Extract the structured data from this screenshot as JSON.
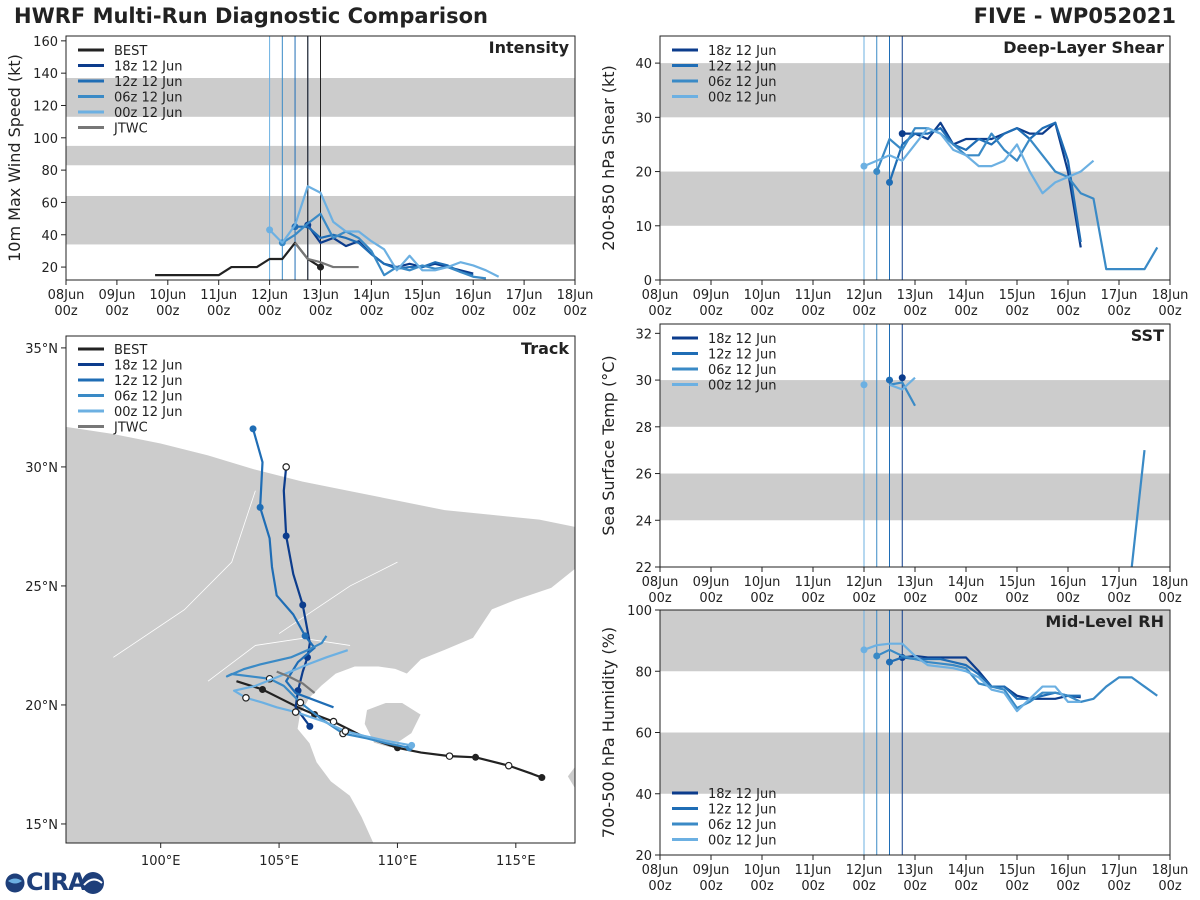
{
  "header": {
    "title_left": "HWRF Multi-Run Diagnostic Comparison",
    "title_right": "FIVE - WP052021"
  },
  "logo": {
    "text": "CIRA",
    "icon": "cira-logo-icon"
  },
  "colors": {
    "best": "#222222",
    "jtwc": "#777777",
    "run_18z": "#0c3c8c",
    "run_12z": "#1f6db5",
    "run_06z": "#3a8ac6",
    "run_00z": "#6cb0e2",
    "band": "#cccccc",
    "land": "#cccccc"
  },
  "time_axis": {
    "tick_labels": [
      [
        "08Jun",
        "00z"
      ],
      [
        "09Jun",
        "00z"
      ],
      [
        "10Jun",
        "00z"
      ],
      [
        "11Jun",
        "00z"
      ],
      [
        "12Jun",
        "00z"
      ],
      [
        "13Jun",
        "00z"
      ],
      [
        "14Jun",
        "00z"
      ],
      [
        "15Jun",
        "00z"
      ],
      [
        "16Jun",
        "00z"
      ],
      [
        "17Jun",
        "00z"
      ],
      [
        "18Jun",
        "00z"
      ]
    ],
    "run_times_hours": [
      96,
      102,
      108,
      114
    ],
    "best_last_hour": 120
  },
  "chart_data": [
    {
      "id": "intensity",
      "type": "line",
      "title": "Intensity",
      "ylabel": "10m Max Wind Speed (kt)",
      "xlabel": "",
      "x_units": "hours since 08Jun 00z",
      "ylim": [
        12,
        163
      ],
      "yticks": [
        20,
        40,
        60,
        80,
        100,
        120,
        140,
        160
      ],
      "bands": [
        [
          34,
          64
        ],
        [
          83,
          95
        ],
        [
          113,
          137
        ]
      ],
      "legend": [
        "BEST",
        "18z 12 Jun",
        "12z 12 Jun",
        "06z 12 Jun",
        "00z 12 Jun",
        "JTWC"
      ],
      "series": [
        {
          "name": "BEST",
          "x": [
            42,
            48,
            54,
            60,
            66,
            72,
            78,
            84,
            90,
            96,
            102,
            108,
            114,
            120
          ],
          "values": [
            15,
            15,
            15,
            15,
            15,
            15,
            20,
            20,
            20,
            25,
            25,
            35,
            25,
            20
          ],
          "end_marker": true
        },
        {
          "name": "18z 12 Jun",
          "x": [
            114,
            120,
            126,
            132,
            138,
            144,
            150,
            156,
            162,
            168,
            174,
            180,
            186,
            192
          ],
          "values": [
            46,
            35,
            38,
            33,
            36,
            28,
            22,
            20,
            22,
            20,
            22,
            20,
            18,
            16
          ],
          "start_marker": true
        },
        {
          "name": "12z 12 Jun",
          "x": [
            108,
            114,
            120,
            126,
            132,
            138,
            144,
            150,
            156,
            162,
            168,
            174,
            180,
            186,
            192
          ],
          "values": [
            45,
            45,
            38,
            40,
            38,
            35,
            28,
            22,
            19,
            20,
            20,
            23,
            21,
            17,
            15
          ],
          "start_marker": true
        },
        {
          "name": "06z 12 Jun",
          "x": [
            102,
            108,
            114,
            120,
            126,
            132,
            138,
            144,
            150,
            156,
            162,
            168,
            174,
            180,
            186,
            192,
            198
          ],
          "values": [
            35,
            40,
            47,
            53,
            38,
            42,
            38,
            30,
            15,
            20,
            18,
            21,
            19,
            20,
            17,
            14,
            13
          ],
          "start_marker": true
        },
        {
          "name": "00z 12 Jun",
          "x": [
            96,
            102,
            108,
            114,
            120,
            126,
            132,
            138,
            144,
            150,
            156,
            162,
            168,
            174,
            180,
            186,
            192,
            198,
            204
          ],
          "values": [
            43,
            35,
            46,
            70,
            66,
            48,
            42,
            42,
            36,
            31,
            18,
            27,
            18,
            18,
            20,
            23,
            21,
            18,
            14
          ],
          "start_marker": true
        },
        {
          "name": "JTWC",
          "x": [
            108,
            114,
            120,
            126,
            132,
            138
          ],
          "values": [
            35,
            25,
            23,
            20,
            20,
            20
          ]
        }
      ]
    },
    {
      "id": "shear",
      "type": "line",
      "title": "Deep-Layer Shear",
      "ylabel": "200-850 hPa Shear (kt)",
      "xlabel": "",
      "x_units": "hours since 08Jun 00z",
      "ylim": [
        0,
        45
      ],
      "yticks": [
        0,
        10,
        20,
        30,
        40
      ],
      "bands": [
        [
          10,
          20
        ],
        [
          30,
          40
        ]
      ],
      "legend": [
        "18z 12 Jun",
        "12z 12 Jun",
        "06z 12 Jun",
        "00z 12 Jun"
      ],
      "series": [
        {
          "name": "18z 12 Jun",
          "x": [
            114,
            120,
            126,
            132,
            138,
            144,
            150,
            156,
            162,
            168,
            174,
            180,
            186,
            192,
            198
          ],
          "values": [
            27,
            27,
            26,
            29,
            25,
            26,
            26,
            26,
            27,
            28,
            27,
            27,
            29,
            20,
            6
          ],
          "start_marker": true
        },
        {
          "name": "12z 12 Jun",
          "x": [
            108,
            114,
            120,
            126,
            132,
            138,
            144,
            150,
            156,
            162,
            168,
            174,
            180,
            186,
            192,
            198
          ],
          "values": [
            18,
            25,
            27,
            27,
            28,
            25,
            24,
            26,
            25,
            27,
            28,
            26,
            28,
            29,
            22,
            7
          ],
          "start_marker": true
        },
        {
          "name": "06z 12 Jun",
          "x": [
            102,
            108,
            114,
            120,
            126,
            132,
            138,
            144,
            150,
            156,
            162,
            168,
            174,
            180,
            186,
            192,
            198,
            204,
            210,
            216,
            222,
            228,
            234
          ],
          "values": [
            20,
            26,
            24,
            28,
            28,
            27,
            25,
            23,
            23,
            27,
            24,
            22,
            26,
            23,
            20,
            19,
            16,
            15,
            2,
            2,
            2,
            2,
            6
          ],
          "start_marker": true
        },
        {
          "name": "00z 12 Jun",
          "x": [
            96,
            102,
            108,
            114,
            120,
            126,
            132,
            138,
            144,
            150,
            156,
            162,
            168,
            174,
            180,
            186,
            192,
            198,
            204
          ],
          "values": [
            21,
            22,
            23,
            22,
            25,
            28,
            27,
            24,
            23,
            21,
            21,
            22,
            25,
            20,
            16,
            18,
            19,
            20,
            22
          ],
          "start_marker": true
        }
      ]
    },
    {
      "id": "sst",
      "type": "line",
      "title": "SST",
      "ylabel": "Sea Surface Temp (°C)",
      "xlabel": "",
      "x_units": "hours since 08Jun 00z",
      "ylim": [
        22,
        32.4
      ],
      "yticks": [
        22,
        24,
        26,
        28,
        30,
        32
      ],
      "bands": [
        [
          24,
          26
        ],
        [
          28,
          30
        ]
      ],
      "legend": [
        "18z 12 Jun",
        "12z 12 Jun",
        "06z 12 Jun",
        "00z 12 Jun"
      ],
      "series": [
        {
          "name": "18z 12 Jun",
          "x": [
            114
          ],
          "values": [
            30.1
          ],
          "start_marker": true
        },
        {
          "name": "12z 12 Jun",
          "x": [
            108
          ],
          "values": [
            30.0
          ],
          "start_marker": true
        },
        {
          "name": "06z 12 Jun",
          "x": [
            108,
            114,
            120,
            222,
            228
          ],
          "values": [
            29.8,
            29.9,
            28.9,
            22.0,
            27.0
          ],
          "start_marker": false,
          "break_after": 2
        },
        {
          "name": "00z 12 Jun",
          "x": [
            96,
            108,
            114,
            120
          ],
          "values": [
            29.8,
            29.8,
            29.6,
            30.1
          ],
          "start_marker": true,
          "break_after": 0
        }
      ]
    },
    {
      "id": "rh",
      "type": "line",
      "title": "Mid-Level RH",
      "ylabel": "700-500 hPa Humidity (%)",
      "xlabel": "",
      "x_units": "hours since 08Jun 00z",
      "ylim": [
        20,
        100
      ],
      "yticks": [
        20,
        40,
        60,
        80,
        100
      ],
      "bands": [
        [
          40,
          60
        ],
        [
          80,
          100
        ]
      ],
      "legend": [
        "18z 12 Jun",
        "12z 12 Jun",
        "06z 12 Jun",
        "00z 12 Jun"
      ],
      "series": [
        {
          "name": "18z 12 Jun",
          "x": [
            114,
            120,
            126,
            132,
            138,
            144,
            150,
            156,
            162,
            168,
            174,
            180,
            186,
            192,
            198
          ],
          "values": [
            84.5,
            85,
            84.5,
            84.5,
            84.5,
            84.5,
            80,
            75,
            75,
            72,
            71,
            71,
            71,
            72,
            71.5
          ],
          "start_marker": true
        },
        {
          "name": "12z 12 Jun",
          "x": [
            108,
            114,
            120,
            126,
            132,
            138,
            144,
            150,
            156,
            162,
            168,
            174,
            180,
            186,
            192,
            198
          ],
          "values": [
            83,
            84.5,
            84,
            84,
            84,
            83,
            82,
            79,
            75,
            75,
            71,
            71,
            72,
            73,
            72,
            72
          ],
          "start_marker": true
        },
        {
          "name": "06z 12 Jun",
          "x": [
            102,
            108,
            114,
            120,
            126,
            132,
            138,
            144,
            150,
            156,
            162,
            168,
            174,
            180,
            186,
            192,
            198,
            204,
            210,
            216,
            222,
            228,
            234
          ],
          "values": [
            85,
            87,
            85,
            84,
            83,
            82.5,
            82,
            81,
            76,
            75,
            74,
            68,
            70,
            73,
            73,
            72,
            70,
            71,
            75,
            78,
            78,
            75,
            72
          ],
          "start_marker": true
        },
        {
          "name": "00z 12 Jun",
          "x": [
            96,
            102,
            108,
            114,
            120,
            126,
            132,
            138,
            144,
            150,
            156,
            162,
            168,
            174,
            180,
            186,
            192,
            198
          ],
          "values": [
            87,
            88.5,
            89,
            89,
            85,
            82,
            81.5,
            81,
            80,
            78,
            74,
            73,
            67,
            71,
            75,
            75,
            70,
            70
          ],
          "start_marker": true
        }
      ]
    },
    {
      "id": "track",
      "type": "scatter",
      "title": "Track",
      "xlabel": "",
      "ylabel": "",
      "xlim": [
        96,
        117.5
      ],
      "ylim": [
        14.2,
        35.5
      ],
      "x_ticks": [
        100,
        105,
        110,
        115
      ],
      "x_tick_labels": [
        "100°E",
        "105°E",
        "110°E",
        "115°E"
      ],
      "y_ticks": [
        15,
        20,
        25,
        30,
        35
      ],
      "y_tick_labels": [
        "15°N",
        "20°N",
        "25°N",
        "30°N",
        "35°N"
      ],
      "legend": [
        "BEST",
        "18z 12 Jun",
        "12z 12 Jun",
        "06z 12 Jun",
        "00z 12 Jun",
        "JTWC"
      ],
      "series": [
        {
          "name": "BEST",
          "lon": [
            116.1,
            115.7,
            114.7,
            113.3,
            112.2,
            111.0,
            110.0,
            108.5,
            107.3,
            106.5,
            105.8,
            105.0,
            104.3,
            103.2
          ],
          "lat": [
            16.95,
            17.1,
            17.45,
            17.8,
            17.85,
            18.0,
            18.2,
            18.7,
            19.3,
            19.6,
            19.9,
            20.3,
            20.65,
            21.0
          ],
          "filled_every": [
            0,
            3,
            6,
            9,
            12
          ],
          "open_every": [
            2,
            4,
            8
          ]
        },
        {
          "name": "18z 12 Jun",
          "lon": [
            106.3,
            106.0,
            105.7,
            105.8,
            106.0,
            106.2,
            106.3,
            106.0,
            105.6,
            105.3,
            105.2,
            105.3
          ],
          "lat": [
            19.1,
            19.5,
            19.9,
            20.6,
            21.4,
            22.0,
            22.6,
            24.2,
            25.5,
            27.1,
            29.0,
            30.0
          ],
          "filled_every": [
            0,
            3,
            5,
            7,
            9
          ],
          "open_every": [
            11
          ]
        },
        {
          "name": "12z 12 Jun",
          "lon": [
            107.3,
            106.5,
            105.7,
            105.3,
            105.8,
            106.5,
            106.1,
            105.6,
            104.9,
            104.7,
            104.6,
            104.2,
            104.3,
            103.9
          ],
          "lat": [
            19.9,
            20.2,
            20.5,
            21.0,
            21.8,
            22.4,
            22.9,
            23.8,
            24.6,
            25.8,
            27.0,
            28.3,
            30.2,
            31.6
          ],
          "filled_every": [
            6,
            11,
            13
          ],
          "open_every": []
        },
        {
          "name": "06z 12 Jun",
          "lon": [
            110.5,
            109.5,
            108.7,
            107.7,
            106.8,
            105.9,
            105.2,
            104.6,
            103.0,
            102.8,
            103.5,
            104.2,
            105.5,
            106.2,
            106.8,
            107.0
          ],
          "lat": [
            18.2,
            18.4,
            18.6,
            18.8,
            19.4,
            20.1,
            20.8,
            21.1,
            21.3,
            21.2,
            21.5,
            21.7,
            22.0,
            22.3,
            22.6,
            22.9
          ],
          "filled_every": [
            0
          ],
          "open_every": [
            3,
            5,
            7
          ]
        },
        {
          "name": "00z 12 Jun",
          "lon": [
            110.6,
            109.5,
            108.6,
            107.8,
            106.9,
            105.7,
            104.9,
            104.3,
            103.6,
            103.1,
            104.0,
            105.0,
            106.2,
            107.0,
            107.9
          ],
          "lat": [
            18.3,
            18.5,
            18.7,
            18.9,
            19.3,
            19.7,
            19.9,
            20.1,
            20.3,
            20.6,
            20.8,
            21.2,
            21.7,
            22.0,
            22.3
          ],
          "filled_every": [
            0
          ],
          "open_every": [
            3,
            5,
            8
          ]
        },
        {
          "name": "JTWC",
          "lon": [
            106.5,
            106.0,
            105.4,
            104.9
          ],
          "lat": [
            20.5,
            20.9,
            21.2,
            21.4
          ]
        }
      ]
    }
  ]
}
